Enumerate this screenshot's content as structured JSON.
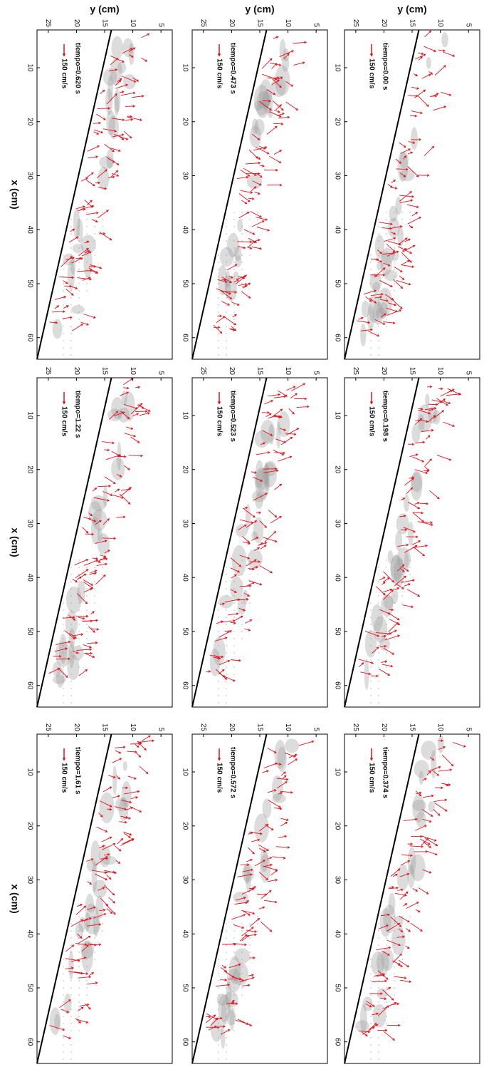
{
  "chart_data": [
    {
      "type": "quiver",
      "label": "tiempo=0.00 s",
      "scale_label": "150 cm/s",
      "ylabel": "y (cm)",
      "xlim": [
        3,
        64
      ],
      "ylim": [
        3,
        27
      ],
      "y_reversed": true,
      "xticks": [
        10,
        20,
        30,
        40,
        50,
        60
      ],
      "yticks": [
        5,
        10,
        15,
        20,
        25
      ],
      "color": "#e0141e"
    },
    {
      "type": "quiver",
      "label": "tiempo=0.198 s",
      "scale_label": "150 cm/s",
      "xlim": [
        3,
        64
      ],
      "ylim": [
        3,
        27
      ],
      "y_reversed": true,
      "xticks": [
        10,
        20,
        30,
        40,
        50,
        60
      ],
      "yticks": [
        5,
        10,
        15,
        20,
        25
      ],
      "color": "#e0141e"
    },
    {
      "type": "quiver",
      "label": "tiempo=0.374 s",
      "scale_label": "150 cm/s",
      "xlim": [
        3,
        64
      ],
      "ylim": [
        3,
        27
      ],
      "y_reversed": true,
      "xticks": [
        10,
        20,
        30,
        40,
        50,
        60
      ],
      "yticks": [
        5,
        10,
        15,
        20,
        25
      ],
      "color": "#e0141e"
    },
    {
      "type": "quiver",
      "label": "tiempo=0.473 s",
      "scale_label": "150 cm/s",
      "ylabel": "y (cm)",
      "xlim": [
        3,
        64
      ],
      "ylim": [
        3,
        27
      ],
      "y_reversed": true,
      "xticks": [
        10,
        20,
        30,
        40,
        50,
        60
      ],
      "yticks": [
        5,
        10,
        15,
        20,
        25
      ],
      "color": "#e0141e"
    },
    {
      "type": "quiver",
      "label": "tiempo=0.523 s",
      "scale_label": "150 cm/s",
      "xlim": [
        3,
        64
      ],
      "ylim": [
        3,
        27
      ],
      "y_reversed": true,
      "xticks": [
        10,
        20,
        30,
        40,
        50,
        60
      ],
      "yticks": [
        5,
        10,
        15,
        20,
        25
      ],
      "color": "#e0141e"
    },
    {
      "type": "quiver",
      "label": "tiempo=0.572 s",
      "scale_label": "150 cm/s",
      "xlim": [
        3,
        64
      ],
      "ylim": [
        3,
        27
      ],
      "y_reversed": true,
      "xticks": [
        10,
        20,
        30,
        40,
        50,
        60
      ],
      "yticks": [
        5,
        10,
        15,
        20,
        25
      ],
      "color": "#e0141e"
    },
    {
      "type": "quiver",
      "label": "tiempo=0.620 s",
      "scale_label": "150 cm/s",
      "ylabel": "y (cm)",
      "xlabel": "x (cm)",
      "xlim": [
        3,
        64
      ],
      "ylim": [
        3,
        27
      ],
      "y_reversed": true,
      "xticks": [
        10,
        20,
        30,
        40,
        50,
        60
      ],
      "yticks": [
        5,
        10,
        15,
        20,
        25
      ],
      "color": "#e0141e"
    },
    {
      "type": "quiver",
      "label": "tiempo=1.22 s",
      "scale_label": "150 cm/s",
      "xlabel": "x (cm)",
      "xlim": [
        3,
        64
      ],
      "ylim": [
        3,
        27
      ],
      "y_reversed": true,
      "xticks": [
        10,
        20,
        30,
        40,
        50,
        60
      ],
      "yticks": [
        5,
        10,
        15,
        20,
        25
      ],
      "color": "#e0141e"
    },
    {
      "type": "quiver",
      "label": "tiempo=1.61 s",
      "scale_label": "150 cm/s",
      "xlabel": "x (cm)",
      "xlim": [
        3,
        64
      ],
      "ylim": [
        3,
        27
      ],
      "y_reversed": true,
      "xticks": [
        10,
        20,
        30,
        40,
        50,
        60
      ],
      "yticks": [
        5,
        10,
        15,
        20,
        25
      ],
      "color": "#e0141e"
    }
  ]
}
